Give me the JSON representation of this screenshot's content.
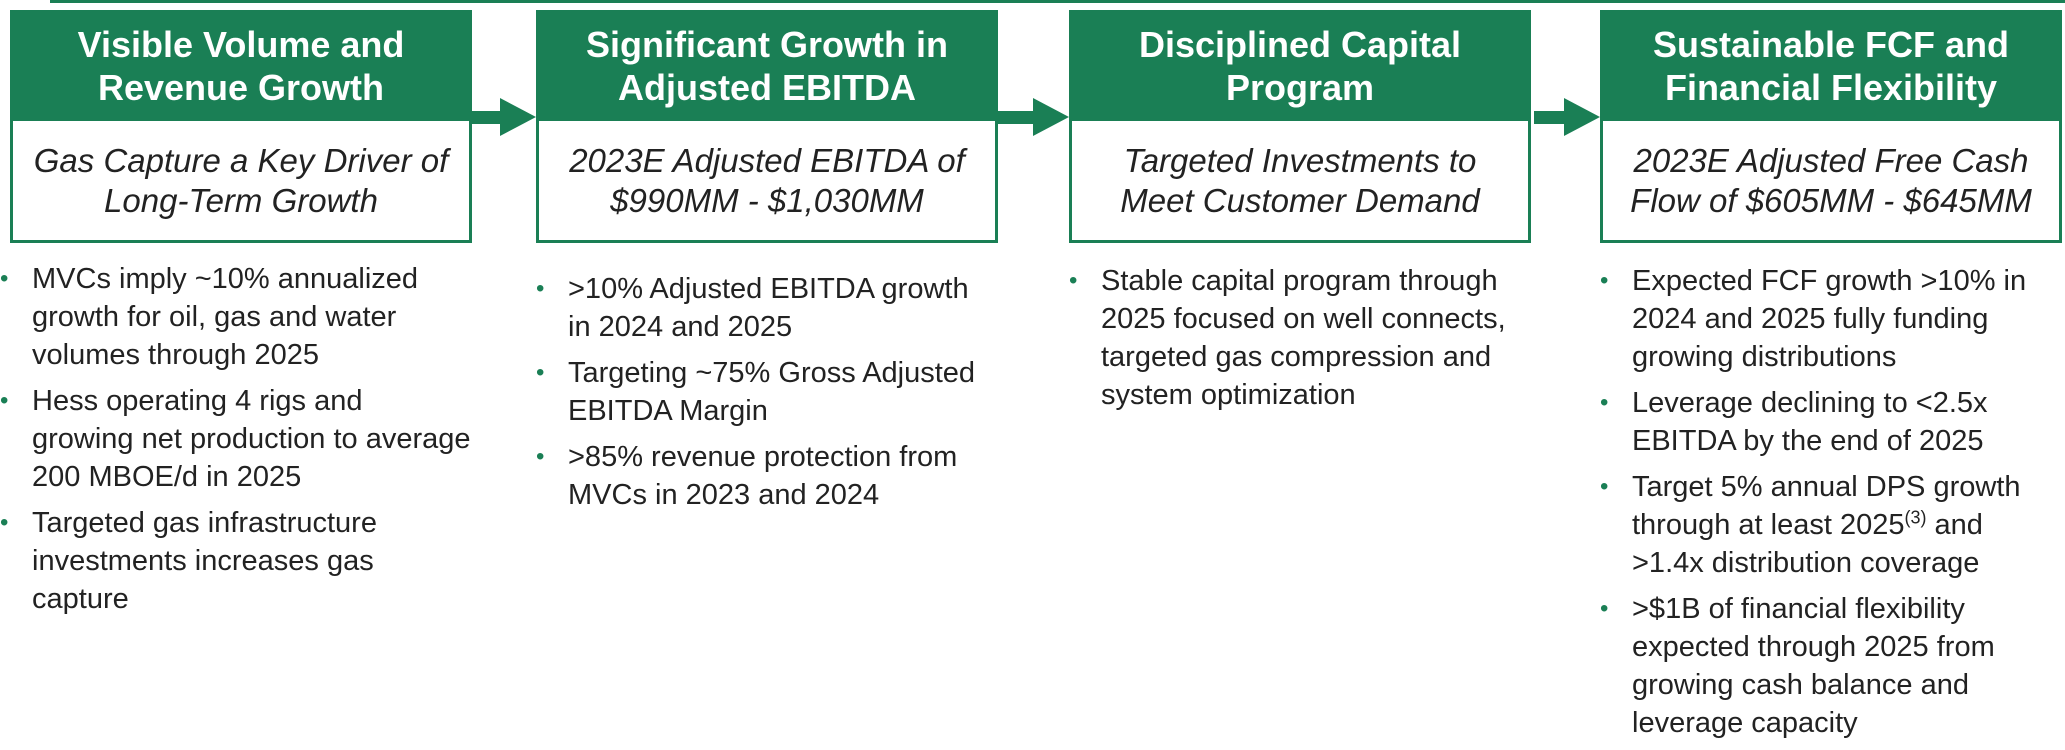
{
  "columns": [
    {
      "title": "Visible Volume and Revenue Growth",
      "subtitle": "Gas Capture a Key Driver of Long-Term Growth",
      "bullets": [
        {
          "text": "MVCs imply ~10% annualized growth for oil, gas and water volumes through 2025"
        },
        {
          "text": "Hess operating 4 rigs and growing net production to average 200 MBOE/d in 2025"
        },
        {
          "text": "Targeted gas infrastructure investments increases gas capture"
        }
      ]
    },
    {
      "title": "Significant Growth in Adjusted EBITDA",
      "subtitle": "2023E Adjusted EBITDA of $990MM - $1,030MM",
      "bullets": [
        {
          "text": ">10% Adjusted EBITDA growth in 2024 and 2025"
        },
        {
          "text": "Targeting ~75% Gross Adjusted EBITDA Margin"
        },
        {
          "text": ">85% revenue protection from MVCs in 2023 and 2024"
        }
      ]
    },
    {
      "title": "Disciplined Capital Program",
      "subtitle": "Targeted Investments to Meet Customer Demand",
      "bullets": [
        {
          "text": "Stable capital program through 2025 focused on well connects, targeted gas compression and system optimization"
        }
      ]
    },
    {
      "title": "Sustainable FCF and Financial Flexibility",
      "subtitle": "2023E Adjusted Free Cash Flow of $605MM - $645MM",
      "bullets": [
        {
          "text": "Expected FCF growth >10% in 2024 and 2025 fully funding growing distributions"
        },
        {
          "text": "Leverage declining to <2.5x EBITDA by the end of 2025"
        },
        {
          "text": "Target 5% annual DPS growth through at least 2025",
          "sup": "(3)",
          "after": " and >1.4x distribution coverage"
        },
        {
          "text": ">$1B of financial flexibility expected through 2025 from growing cash balance and leverage capacity"
        }
      ]
    }
  ]
}
